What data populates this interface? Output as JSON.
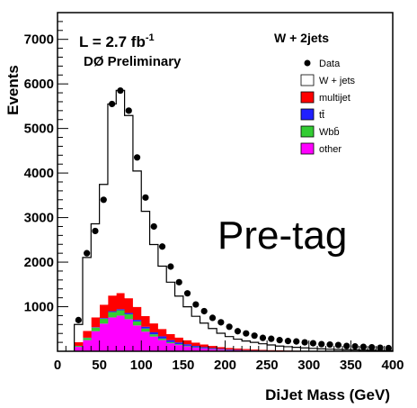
{
  "chart_data": {
    "type": "bar",
    "subtype": "stacked-histogram-with-data-points",
    "xlabel": "DiJet Mass  (GeV)",
    "ylabel": "Events",
    "xlim": [
      0,
      400
    ],
    "ylim": [
      0,
      7600
    ],
    "x_ticks": [
      0,
      50,
      100,
      150,
      200,
      250,
      300,
      350,
      400
    ],
    "y_ticks": [
      1000,
      2000,
      3000,
      4000,
      5000,
      6000,
      7000
    ],
    "bin_edges": [
      20,
      30,
      40,
      50,
      60,
      70,
      80,
      90,
      100,
      110,
      120,
      130,
      140,
      150,
      160,
      170,
      180,
      190,
      200,
      210,
      220,
      230,
      240,
      250,
      260,
      270,
      280,
      290,
      300,
      310,
      320,
      330,
      340,
      350,
      360,
      370,
      380,
      390,
      400
    ],
    "annotations": {
      "luminosity_prefix": "L = 2.7 fb",
      "luminosity_exp": "-1",
      "experiment": "DØ Preliminary",
      "channel": "W + 2jets",
      "tag": "Pre-tag"
    },
    "legend": {
      "placement": "top-right",
      "entries": [
        {
          "label": "Data",
          "marker": "dot",
          "color": "#000000"
        },
        {
          "label": "W + jets",
          "marker": "box",
          "color": "#ffffff"
        },
        {
          "label": "multijet",
          "marker": "box",
          "color": "#ff0000"
        },
        {
          "label": "tt̄",
          "marker": "box",
          "color": "#2020ff"
        },
        {
          "label": "Wbb̄",
          "marker": "box",
          "color": "#33cc33"
        },
        {
          "label": "other",
          "marker": "box",
          "color": "#ff00ff"
        }
      ]
    },
    "series": [
      {
        "name": "other",
        "color": "#ff00ff",
        "values": [
          100,
          250,
          450,
          620,
          760,
          800,
          720,
          580,
          440,
          330,
          250,
          180,
          140,
          110,
          80,
          60,
          45,
          35,
          25,
          20,
          15,
          12,
          10,
          8,
          6,
          5,
          4,
          3,
          2,
          2,
          1,
          1,
          1,
          1,
          0,
          0,
          0,
          0
        ]
      },
      {
        "name": "Wbb̄",
        "color": "#33cc33",
        "values": [
          20,
          50,
          80,
          110,
          120,
          120,
          110,
          90,
          70,
          50,
          35,
          25,
          18,
          13,
          10,
          7,
          5,
          4,
          3,
          2,
          2,
          1,
          1,
          1,
          0,
          0,
          0,
          0,
          0,
          0,
          0,
          0,
          0,
          0,
          0,
          0,
          0,
          0
        ]
      },
      {
        "name": "tt̄",
        "color": "#2020ff",
        "values": [
          2,
          5,
          10,
          15,
          20,
          25,
          30,
          35,
          40,
          45,
          50,
          45,
          40,
          35,
          30,
          25,
          20,
          15,
          12,
          10,
          8,
          6,
          5,
          4,
          3,
          2,
          2,
          1,
          1,
          1,
          0,
          0,
          0,
          0,
          0,
          0,
          0,
          0
        ]
      },
      {
        "name": "multijet",
        "color": "#ff0000",
        "values": [
          80,
          150,
          220,
          300,
          350,
          360,
          330,
          290,
          240,
          200,
          165,
          135,
          110,
          90,
          75,
          60,
          50,
          40,
          35,
          30,
          25,
          20,
          17,
          14,
          12,
          10,
          8,
          7,
          6,
          5,
          4,
          4,
          3,
          3,
          2,
          2,
          2,
          1
        ]
      },
      {
        "name": "W + jets",
        "color": "#ffffff",
        "values": [
          400,
          1650,
          2100,
          2700,
          4300,
          4550,
          4100,
          3050,
          2350,
          1770,
          1410,
          1165,
          930,
          750,
          590,
          480,
          390,
          310,
          255,
          210,
          180,
          160,
          135,
          115,
          95,
          85,
          75,
          65,
          55,
          48,
          42,
          36,
          31,
          27,
          23,
          20,
          17,
          14
        ]
      }
    ],
    "data_points": {
      "x": [
        25,
        35,
        45,
        55,
        65,
        75,
        85,
        95,
        105,
        115,
        125,
        135,
        145,
        155,
        165,
        175,
        185,
        195,
        205,
        215,
        225,
        235,
        245,
        255,
        265,
        275,
        285,
        295,
        305,
        315,
        325,
        335,
        345,
        355,
        365,
        375,
        385,
        395
      ],
      "y": [
        700,
        2200,
        2700,
        3400,
        5550,
        5850,
        5400,
        4350,
        3450,
        2800,
        2350,
        1900,
        1550,
        1300,
        1050,
        900,
        750,
        650,
        550,
        450,
        400,
        350,
        300,
        280,
        250,
        230,
        220,
        200,
        180,
        160,
        150,
        140,
        120,
        110,
        100,
        90,
        80,
        70
      ]
    }
  }
}
